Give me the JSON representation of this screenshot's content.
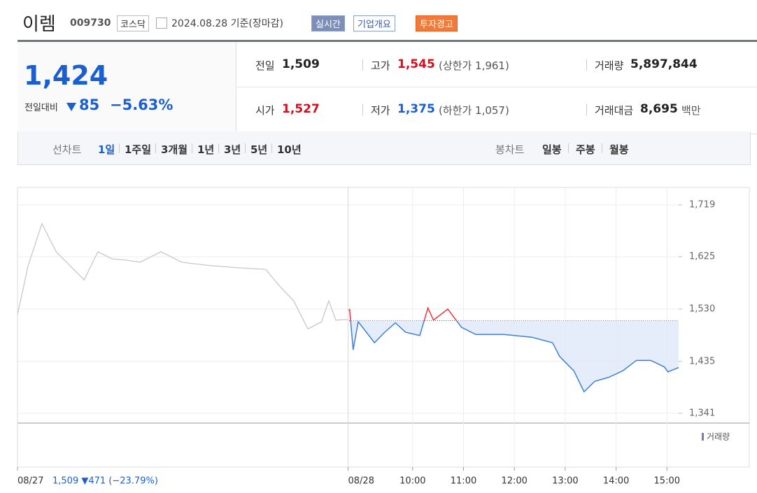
{
  "header": {
    "name": "이렘",
    "code": "009730",
    "market": "코스닥",
    "date": "2024.08.28 기준(장마감)",
    "buttons": [
      "실시간",
      "기업개요",
      "투자경고"
    ]
  },
  "summary": {
    "price": "1,424",
    "change_label": "전일대비",
    "change": "85",
    "change_rate": "−5.63%",
    "stats": [
      {
        "label": "전일",
        "value": "1,509",
        "extra": ""
      },
      {
        "label": "고가",
        "value": "1,545",
        "extra": "(상한가 1,961)"
      },
      {
        "label": "거래량",
        "value": "5,897,844",
        "extra": ""
      },
      {
        "label": "시가",
        "value": "1,527",
        "extra": ""
      },
      {
        "label": "저가",
        "value": "1,375",
        "extra": "(하한가 1,057)"
      },
      {
        "label": "거래대금",
        "value": "8,695",
        "extra": "백만"
      }
    ]
  },
  "tabs": {
    "line_label": "선차트",
    "line_periods": [
      "1일",
      "1주일",
      "3개월",
      "1년",
      "3년",
      "5년",
      "10년"
    ],
    "candle_label": "봉차트",
    "candle_periods": [
      "일봉",
      "주봉",
      "월봉"
    ]
  },
  "chart_data": {
    "type": "line",
    "series": [
      {
        "name": "08/27",
        "color": "#c8c8c8",
        "x": [
          0,
          0.21,
          0.48,
          0.76,
          1.03,
          1.31,
          1.58,
          1.86,
          2.13,
          2.41,
          2.82,
          3.23,
          3.78,
          4.33,
          4.88,
          5.16,
          5.43,
          5.71,
          5.98,
          6.12,
          6.26,
          6.49
        ],
        "values": [
          1520,
          1609,
          1685,
          1634,
          1609,
          1583,
          1634,
          1621,
          1619,
          1615,
          1634,
          1615,
          1609,
          1605,
          1602,
          1571,
          1545,
          1494,
          1507,
          1545,
          1510,
          1511
        ]
      },
      {
        "name": "08/28",
        "color": "#3f7fd9",
        "x": [
          6.52,
          6.53,
          6.6,
          6.7,
          6.81,
          7.02,
          7.22,
          7.43,
          7.63,
          7.91,
          8.07,
          8.18,
          8.46,
          8.73,
          9.01,
          9.56,
          10.11,
          10.52,
          10.66,
          10.94,
          11.14,
          11.35,
          11.62,
          11.9,
          12.17,
          12.45,
          12.72,
          12.79,
          13.0
        ],
        "values": [
          1527,
          1530,
          1456,
          1507,
          1494,
          1469,
          1488,
          1505,
          1488,
          1482,
          1532,
          1510,
          1530,
          1497,
          1484,
          1484,
          1479,
          1469,
          1444,
          1418,
          1380,
          1399,
          1406,
          1418,
          1437,
          1437,
          1425,
          1416,
          1424
        ]
      }
    ],
    "prev_close": 1509,
    "up_color": "#e8353e",
    "fill_color": "#dde8f8",
    "xlim": [
      0,
      13
    ],
    "ylim": [
      1341,
      1719
    ],
    "xticks": [
      {
        "value": 0,
        "label": "08/27"
      },
      {
        "value": 6.5,
        "label": "08/28"
      },
      {
        "value": 7.77,
        "label": "10:00"
      },
      {
        "value": 8.77,
        "label": "11:00"
      },
      {
        "value": 9.77,
        "label": "12:00"
      },
      {
        "value": 10.77,
        "label": "13:00"
      },
      {
        "value": 11.77,
        "label": "14:00"
      },
      {
        "value": 12.77,
        "label": "15:00"
      }
    ],
    "yticks": [
      {
        "value": 1341,
        "label": "1,341"
      },
      {
        "value": 1435,
        "label": "1,435"
      },
      {
        "value": 1530,
        "label": "1,530"
      },
      {
        "value": 1625,
        "label": "1,625"
      },
      {
        "value": 1719,
        "label": "1,719"
      }
    ],
    "grid": true,
    "volume_legend": "거래량",
    "annotation": "1,509 ▼471 (−23.79%)"
  }
}
